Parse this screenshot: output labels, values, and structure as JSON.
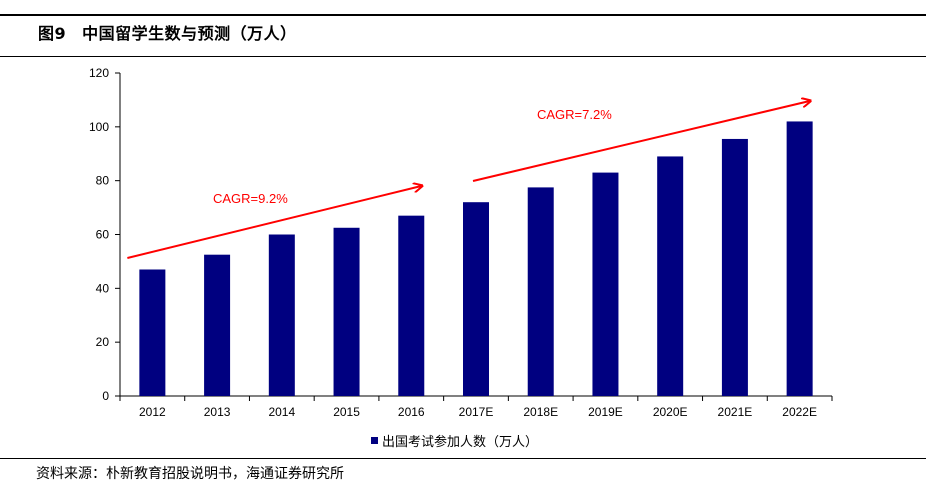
{
  "figure": {
    "number": "图9",
    "title": "中国留学生数与预测（万人）",
    "source": "资料来源：朴新教育招股说明书，海通证券研究所"
  },
  "colors": {
    "bar": "#000080",
    "annotation": "#ff0000",
    "axis": "#000000"
  },
  "chart_data": {
    "type": "bar",
    "categories": [
      "2012",
      "2013",
      "2014",
      "2015",
      "2016",
      "2017E",
      "2018E",
      "2019E",
      "2020E",
      "2021E",
      "2022E"
    ],
    "series": [
      {
        "name": "出国考试参加人数（万人）",
        "values": [
          47,
          52.5,
          60,
          62.5,
          67,
          72,
          77.5,
          83,
          89,
          95.5,
          102
        ]
      }
    ],
    "ylim": [
      0,
      120
    ],
    "yticks": [
      "0",
      "20",
      "40",
      "60",
      "80",
      "100",
      "120"
    ],
    "grid": false,
    "legend_position": "bottom",
    "annotations": [
      {
        "text": "CAGR=9.2%",
        "from_category": "2012",
        "to_category": "2016"
      },
      {
        "text": "CAGR=7.2%",
        "from_category": "2017E",
        "to_category": "2022E"
      }
    ]
  }
}
